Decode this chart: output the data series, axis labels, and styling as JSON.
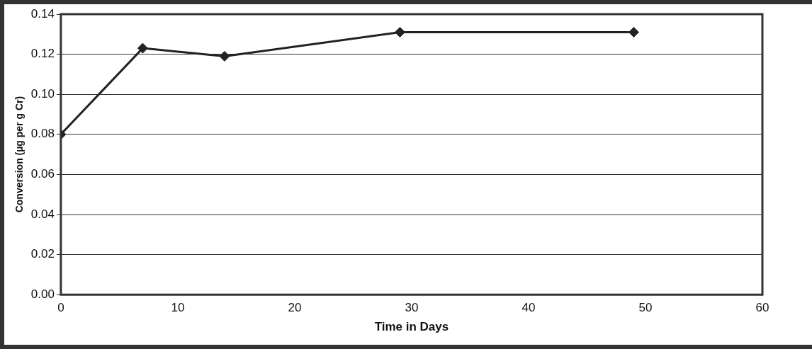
{
  "chart_data": {
    "type": "line",
    "xlabel": "Time in Days",
    "ylabel": "Conversion (µg per g Cr)",
    "x": [
      0,
      7,
      14,
      29,
      49
    ],
    "series": [
      {
        "color": "#222222",
        "values": [
          0.08,
          0.123,
          0.119,
          0.131,
          0.131
        ]
      }
    ],
    "xlim": [
      0,
      60
    ],
    "xticks": [
      0,
      10,
      20,
      30,
      40,
      50,
      60
    ],
    "ylim": [
      0,
      0.14
    ],
    "yticks": [
      {
        "value": 0,
        "label": "0.00"
      },
      {
        "value": 0.02,
        "label": "0.02"
      },
      {
        "value": 0.04,
        "label": "0.04"
      },
      {
        "value": 0.06,
        "label": "0.06"
      },
      {
        "value": 0.08,
        "label": "0.08"
      },
      {
        "value": 0.1,
        "label": "0.10"
      },
      {
        "value": 0.12,
        "label": "0.12"
      },
      {
        "value": 0.14,
        "label": "0.14"
      }
    ],
    "grid": "y",
    "legend": false,
    "marker": "diamond",
    "line_style": "solid"
  }
}
